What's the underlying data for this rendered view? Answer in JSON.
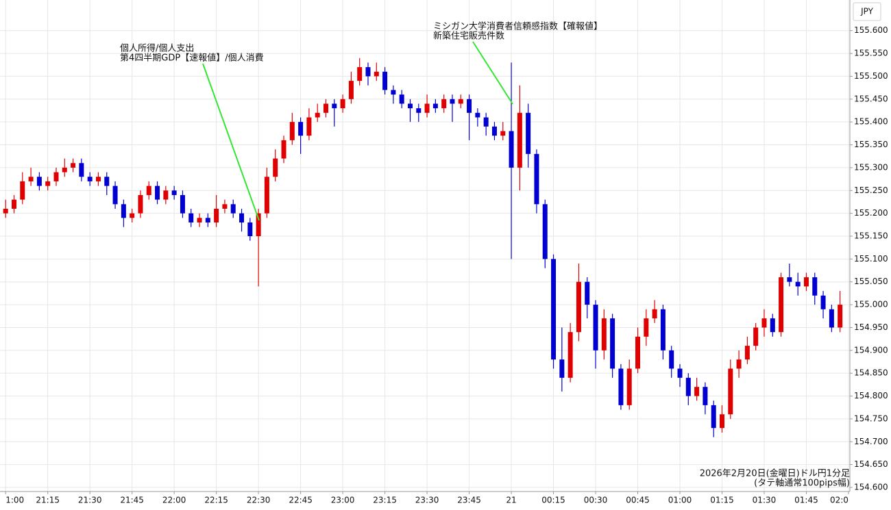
{
  "chart_data": {
    "type": "candlestick",
    "currency": "JPY",
    "annotations": [
      [
        "個人所得/個人支出",
        "第4四半期GDP【速報値】/個人消費"
      ],
      [
        "ミシガン大学消費者信頼感指数【確報値】",
        "新築住宅販売件数"
      ]
    ],
    "note": [
      "2026年2月20日(金曜日)ドル円1分足",
      "(タテ軸通常100pips幅)"
    ],
    "up_color": "#e00000",
    "down_color": "#0000d0",
    "grid": true,
    "xlim": [
      -2,
      300.5
    ],
    "ylim": [
      154.591,
      155.667
    ],
    "xticks": [
      {
        "value": 0,
        "label": "1:00"
      },
      {
        "value": 15,
        "label": "21:15"
      },
      {
        "value": 30,
        "label": "21:30"
      },
      {
        "value": 45,
        "label": "21:45"
      },
      {
        "value": 60,
        "label": "22:00"
      },
      {
        "value": 75,
        "label": "22:15"
      },
      {
        "value": 90,
        "label": "22:30"
      },
      {
        "value": 105,
        "label": "22:45"
      },
      {
        "value": 120,
        "label": "23:00"
      },
      {
        "value": 135,
        "label": "23:15"
      },
      {
        "value": 150,
        "label": "23:30"
      },
      {
        "value": 165,
        "label": "23:45"
      },
      {
        "value": 180,
        "label": "21"
      },
      {
        "value": 195,
        "label": "00:15"
      },
      {
        "value": 210,
        "label": "00:30"
      },
      {
        "value": 225,
        "label": "00:45"
      },
      {
        "value": 240,
        "label": "01:00"
      },
      {
        "value": 255,
        "label": "01:15"
      },
      {
        "value": 270,
        "label": "01:30"
      },
      {
        "value": 285,
        "label": "01:45"
      },
      {
        "value": 300,
        "label": "02:0"
      }
    ],
    "yticks": [
      {
        "value": 154.6,
        "label": "154.600"
      },
      {
        "value": 154.65,
        "label": "154.650"
      },
      {
        "value": 154.7,
        "label": "154.700"
      },
      {
        "value": 154.75,
        "label": "154.750"
      },
      {
        "value": 154.8,
        "label": "154.800"
      },
      {
        "value": 154.85,
        "label": "154.850"
      },
      {
        "value": 154.9,
        "label": "154.900"
      },
      {
        "value": 154.95,
        "label": "154.950"
      },
      {
        "value": 155.0,
        "label": "155.000"
      },
      {
        "value": 155.05,
        "label": "155.050"
      },
      {
        "value": 155.1,
        "label": "155.100"
      },
      {
        "value": 155.15,
        "label": "155.150"
      },
      {
        "value": 155.2,
        "label": "155.200"
      },
      {
        "value": 155.25,
        "label": "155.250"
      },
      {
        "value": 155.3,
        "label": "155.300"
      },
      {
        "value": 155.35,
        "label": "155.350"
      },
      {
        "value": 155.4,
        "label": "155.400"
      },
      {
        "value": 155.45,
        "label": "155.450"
      },
      {
        "value": 155.5,
        "label": "155.500"
      },
      {
        "value": 155.55,
        "label": "155.550"
      },
      {
        "value": 155.6,
        "label": "155.600"
      }
    ],
    "x": [
      0,
      3,
      6,
      9,
      12,
      15,
      18,
      21,
      24,
      27,
      30,
      33,
      36,
      39,
      42,
      45,
      48,
      51,
      54,
      57,
      60,
      63,
      66,
      69,
      72,
      75,
      78,
      81,
      84,
      87,
      90,
      93,
      96,
      99,
      102,
      105,
      108,
      111,
      114,
      117,
      120,
      123,
      126,
      129,
      132,
      135,
      138,
      141,
      144,
      147,
      150,
      153,
      156,
      159,
      162,
      165,
      168,
      171,
      174,
      177,
      180,
      183,
      186,
      189,
      192,
      195,
      198,
      201,
      204,
      207,
      210,
      213,
      216,
      219,
      222,
      225,
      228,
      231,
      234,
      237,
      240,
      243,
      246,
      249,
      252,
      255,
      258,
      261,
      264,
      267,
      270,
      273,
      276,
      279,
      282,
      285,
      288,
      291,
      294,
      297
    ],
    "open": [
      155.2,
      155.21,
      155.23,
      155.27,
      155.28,
      155.26,
      155.27,
      155.29,
      155.3,
      155.31,
      155.28,
      155.27,
      155.28,
      155.26,
      155.22,
      155.19,
      155.2,
      155.24,
      155.26,
      155.23,
      155.25,
      155.24,
      155.2,
      155.18,
      155.19,
      155.18,
      155.21,
      155.22,
      155.2,
      155.18,
      155.15,
      155.2,
      155.28,
      155.32,
      155.36,
      155.4,
      155.37,
      155.41,
      155.42,
      155.44,
      155.43,
      155.45,
      155.49,
      155.52,
      155.5,
      155.51,
      155.47,
      155.46,
      155.44,
      155.43,
      155.42,
      155.44,
      155.43,
      155.45,
      155.44,
      155.45,
      155.42,
      155.41,
      155.39,
      155.37,
      155.38,
      155.3,
      155.42,
      155.33,
      155.22,
      155.1,
      154.88,
      154.84,
      154.94,
      155.05,
      155.0,
      154.9,
      154.97,
      154.86,
      154.78,
      154.86,
      154.93,
      154.97,
      154.99,
      154.9,
      154.86,
      154.84,
      154.8,
      154.82,
      154.78,
      154.73,
      154.76,
      154.86,
      154.88,
      154.91,
      154.95,
      154.97,
      154.94,
      155.06,
      155.05,
      155.04,
      155.06,
      155.02,
      154.99,
      154.95
    ],
    "high": [
      155.23,
      155.24,
      155.29,
      155.3,
      155.29,
      155.28,
      155.3,
      155.32,
      155.32,
      155.32,
      155.29,
      155.29,
      155.29,
      155.27,
      155.23,
      155.21,
      155.25,
      155.27,
      155.27,
      155.26,
      155.26,
      155.25,
      155.21,
      155.2,
      155.2,
      155.24,
      155.23,
      155.23,
      155.21,
      155.19,
      155.21,
      155.3,
      155.34,
      155.37,
      155.42,
      155.41,
      155.43,
      155.44,
      155.45,
      155.45,
      155.46,
      155.51,
      155.54,
      155.53,
      155.53,
      155.52,
      155.48,
      155.47,
      155.45,
      155.44,
      155.46,
      155.45,
      155.46,
      155.46,
      155.46,
      155.46,
      155.43,
      155.42,
      155.4,
      155.4,
      155.53,
      155.48,
      155.44,
      155.34,
      155.23,
      155.11,
      154.95,
      154.96,
      155.09,
      155.06,
      155.01,
      154.99,
      154.98,
      154.87,
      154.88,
      154.95,
      154.99,
      155.01,
      155.0,
      154.91,
      154.87,
      154.85,
      154.84,
      154.83,
      154.79,
      154.78,
      154.88,
      154.9,
      154.93,
      154.96,
      154.99,
      154.98,
      155.07,
      155.09,
      155.07,
      155.07,
      155.07,
      155.03,
      155.0,
      155.03
    ],
    "low": [
      155.19,
      155.2,
      155.22,
      155.26,
      155.25,
      155.25,
      155.26,
      155.28,
      155.29,
      155.27,
      155.26,
      155.26,
      155.24,
      155.21,
      155.17,
      155.18,
      155.19,
      155.23,
      155.22,
      155.22,
      155.23,
      155.19,
      155.17,
      155.17,
      155.17,
      155.17,
      155.2,
      155.19,
      155.16,
      155.14,
      155.04,
      155.19,
      155.27,
      155.31,
      155.35,
      155.33,
      155.36,
      155.4,
      155.41,
      155.39,
      155.42,
      155.44,
      155.48,
      155.48,
      155.49,
      155.46,
      155.44,
      155.43,
      155.4,
      155.4,
      155.41,
      155.42,
      155.42,
      155.4,
      155.43,
      155.36,
      155.39,
      155.37,
      155.36,
      155.36,
      155.1,
      155.25,
      155.3,
      155.2,
      155.08,
      154.86,
      154.81,
      154.83,
      154.92,
      154.97,
      154.86,
      154.88,
      154.84,
      154.77,
      154.77,
      154.85,
      154.91,
      154.96,
      154.88,
      154.84,
      154.82,
      154.78,
      154.79,
      154.76,
      154.71,
      154.72,
      154.75,
      154.84,
      154.87,
      154.9,
      154.93,
      154.93,
      154.93,
      155.04,
      155.02,
      155.03,
      155.0,
      154.97,
      154.94,
      154.94
    ],
    "close": [
      155.21,
      155.23,
      155.27,
      155.28,
      155.26,
      155.27,
      155.29,
      155.3,
      155.31,
      155.28,
      155.27,
      155.28,
      155.26,
      155.22,
      155.19,
      155.2,
      155.24,
      155.26,
      155.23,
      155.25,
      155.24,
      155.2,
      155.18,
      155.19,
      155.18,
      155.21,
      155.22,
      155.2,
      155.18,
      155.15,
      155.2,
      155.28,
      155.32,
      155.36,
      155.4,
      155.37,
      155.41,
      155.42,
      155.44,
      155.43,
      155.45,
      155.49,
      155.52,
      155.5,
      155.51,
      155.47,
      155.46,
      155.44,
      155.43,
      155.42,
      155.44,
      155.43,
      155.45,
      155.44,
      155.45,
      155.42,
      155.41,
      155.39,
      155.37,
      155.38,
      155.3,
      155.42,
      155.33,
      155.22,
      155.1,
      154.88,
      154.84,
      154.94,
      155.05,
      155.0,
      154.9,
      154.97,
      154.86,
      154.78,
      154.86,
      154.93,
      154.97,
      154.99,
      154.9,
      154.86,
      154.84,
      154.8,
      154.82,
      154.78,
      154.73,
      154.76,
      154.86,
      154.88,
      154.91,
      154.95,
      154.97,
      154.94,
      155.06,
      155.05,
      155.04,
      155.06,
      155.02,
      154.99,
      154.95,
      155.0
    ]
  }
}
